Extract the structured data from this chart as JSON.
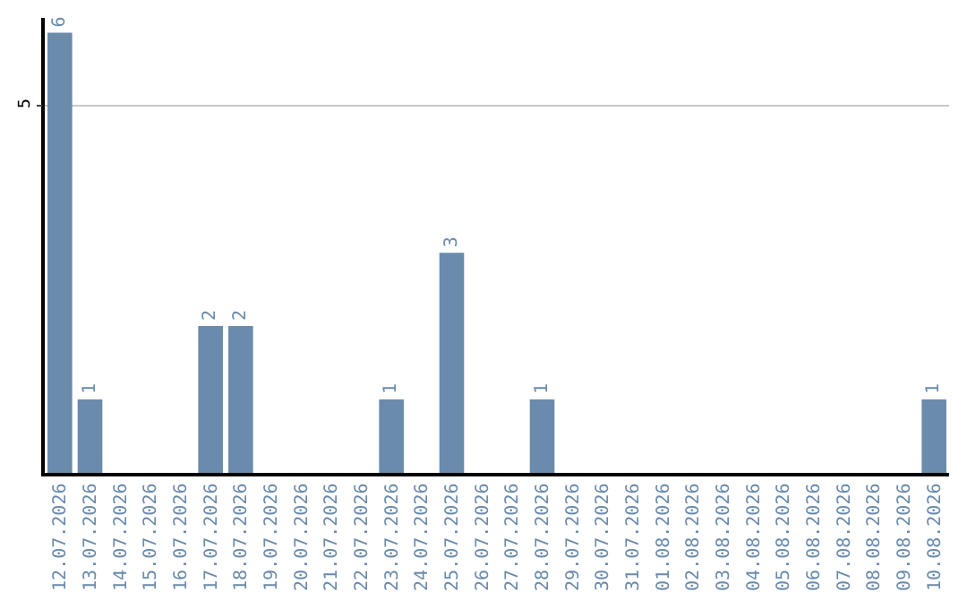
{
  "chart_data": {
    "type": "bar",
    "categories": [
      "12.07.2026",
      "13.07.2026",
      "14.07.2026",
      "15.07.2026",
      "16.07.2026",
      "17.07.2026",
      "18.07.2026",
      "19.07.2026",
      "20.07.2026",
      "21.07.2026",
      "22.07.2026",
      "23.07.2026",
      "24.07.2026",
      "25.07.2026",
      "26.07.2026",
      "27.07.2026",
      "28.07.2026",
      "29.07.2026",
      "30.07.2026",
      "31.07.2026",
      "01.08.2026",
      "02.08.2026",
      "03.08.2026",
      "04.08.2026",
      "05.08.2026",
      "06.08.2026",
      "07.08.2026",
      "08.08.2026",
      "09.08.2026",
      "10.08.2026"
    ],
    "values": [
      6,
      1,
      0,
      0,
      0,
      2,
      2,
      0,
      0,
      0,
      0,
      1,
      0,
      3,
      0,
      0,
      1,
      0,
      0,
      0,
      0,
      0,
      0,
      0,
      0,
      0,
      0,
      0,
      0,
      1
    ],
    "value_labels": [
      "6",
      "1",
      null,
      null,
      null,
      "2",
      "2",
      null,
      null,
      null,
      null,
      "1",
      null,
      "3",
      null,
      null,
      "1",
      null,
      null,
      null,
      null,
      null,
      null,
      null,
      null,
      null,
      null,
      null,
      null,
      "1"
    ],
    "color": "#6a8bab",
    "ylim": [
      0,
      6.2
    ],
    "yticks": [
      5
    ],
    "grid": "y",
    "legend": false
  }
}
